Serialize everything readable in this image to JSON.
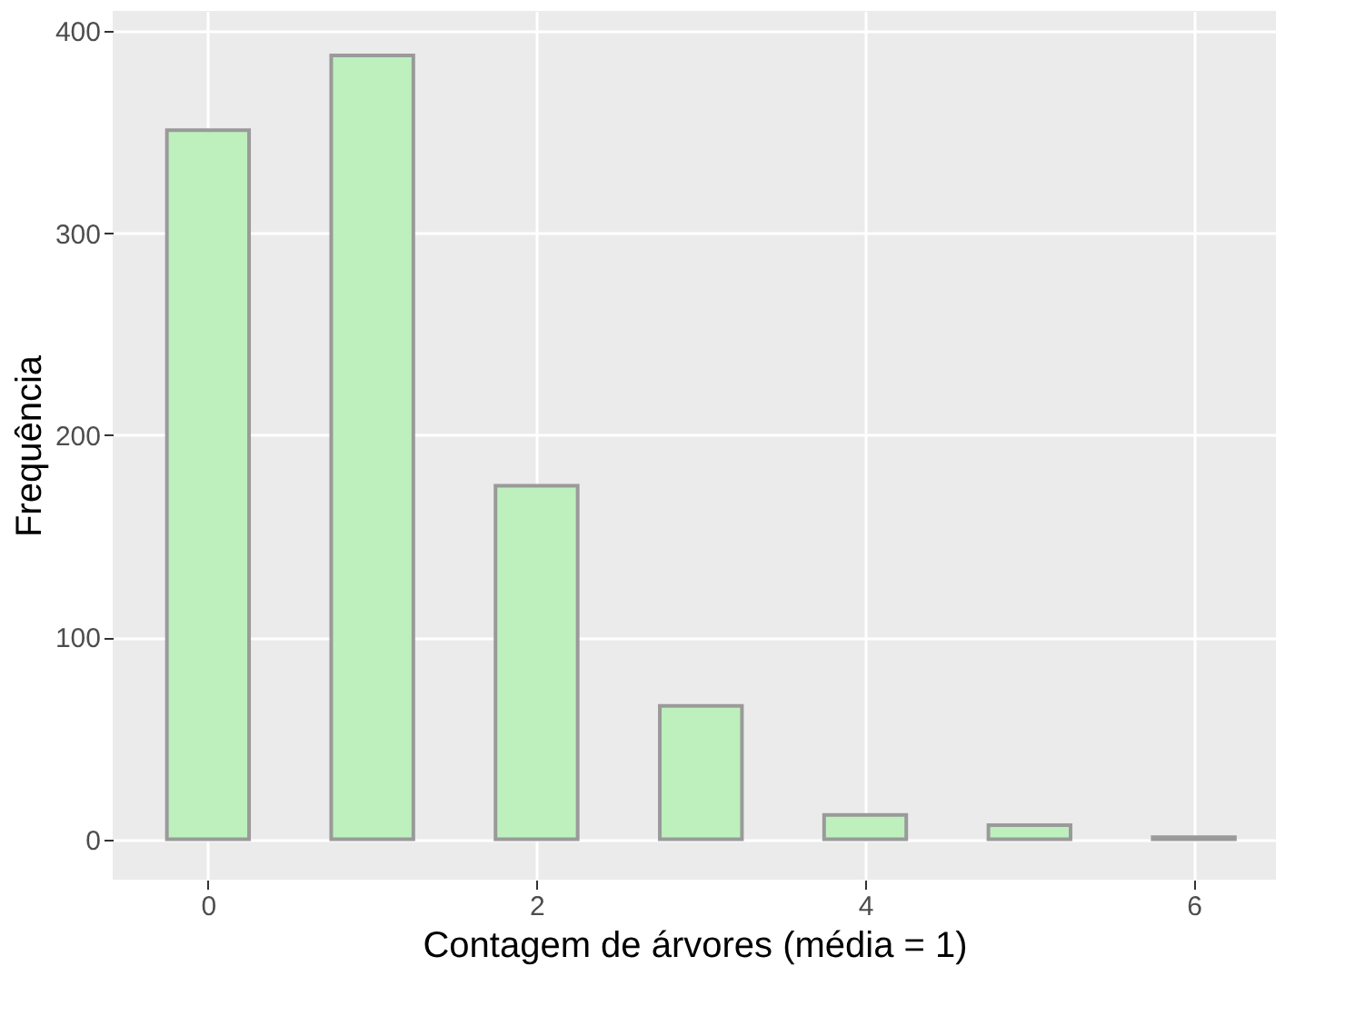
{
  "chart_data": {
    "type": "bar",
    "xlabel": "Contagem de árvores (média = 1)",
    "ylabel": "Frequência",
    "x": [
      0,
      1,
      2,
      3,
      4,
      5,
      6
    ],
    "values": [
      351,
      388,
      175,
      66,
      12,
      7,
      1
    ],
    "color": "#bdf0bd",
    "xlim": [
      -0.58,
      6.5
    ],
    "xticks": [
      0,
      2,
      4,
      6
    ],
    "ylim": [
      -20,
      410
    ],
    "yticks": [
      0,
      100,
      200,
      300,
      400
    ],
    "grid": true
  }
}
